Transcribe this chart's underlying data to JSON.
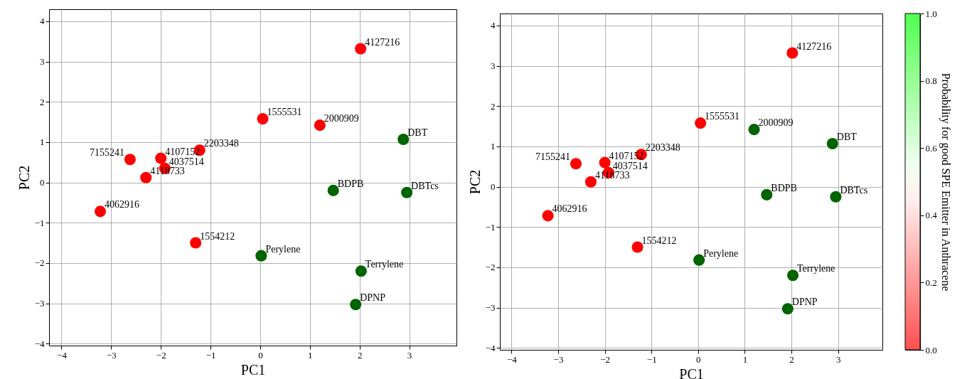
{
  "chart_data": [
    {
      "type": "scatter",
      "xlabel": "PC1",
      "ylabel": "PC2",
      "xlim": [
        -4.25,
        3.95
      ],
      "ylim": [
        -4.05,
        4.3
      ],
      "xticks": [
        -4,
        -3,
        -2,
        -1,
        0,
        1,
        2,
        3
      ],
      "yticks": [
        -4,
        -3,
        -2,
        -1,
        0,
        1,
        2,
        3,
        4
      ],
      "grid": true,
      "marker": "circle",
      "series": [
        {
          "color": "#ff0000",
          "x": [
            2.02,
            0.05,
            1.2,
            -1.22,
            -2.62,
            -2.0,
            -1.92,
            -2.3,
            -3.22,
            -1.3
          ],
          "values": [
            3.32,
            1.58,
            1.42,
            0.8,
            0.57,
            0.6,
            0.35,
            0.12,
            -0.72,
            -1.5
          ]
        },
        {
          "color": "#006400",
          "x": [
            2.88,
            1.47,
            2.95,
            0.02,
            2.03,
            1.92
          ],
          "values": [
            1.07,
            -0.2,
            -0.25,
            -1.82,
            -2.2,
            -3.03
          ]
        }
      ],
      "annotations": [
        {
          "text": "4127216",
          "x": 2.02,
          "y": 3.32
        },
        {
          "text": "1555531",
          "x": 0.05,
          "y": 1.58
        },
        {
          "text": "2000909",
          "x": 1.2,
          "y": 1.42
        },
        {
          "text": "2203348",
          "x": -1.22,
          "y": 0.8
        },
        {
          "text": "7155241",
          "x": -2.62,
          "y": 0.57
        },
        {
          "text": "4107152",
          "x": -2.0,
          "y": 0.6
        },
        {
          "text": "4037514",
          "x": -1.92,
          "y": 0.35
        },
        {
          "text": "4118733",
          "x": -2.3,
          "y": 0.12
        },
        {
          "text": "4062916",
          "x": -3.22,
          "y": -0.72
        },
        {
          "text": "1554212",
          "x": -1.3,
          "y": -1.5
        },
        {
          "text": "DBT",
          "x": 2.88,
          "y": 1.07
        },
        {
          "text": "BDPB",
          "x": 1.47,
          "y": -0.2
        },
        {
          "text": "DBTcs",
          "x": 2.95,
          "y": -0.25
        },
        {
          "text": "Perylene",
          "x": 0.02,
          "y": -1.82
        },
        {
          "text": "Terrylene",
          "x": 2.03,
          "y": -2.2
        },
        {
          "text": "DPNP",
          "x": 1.92,
          "y": -3.03
        }
      ]
    },
    {
      "type": "scatter",
      "xlabel": "PC1",
      "ylabel": "PC2",
      "xlim": [
        -4.25,
        3.95
      ],
      "ylim": [
        -4.05,
        4.3
      ],
      "xticks": [
        -4,
        -3,
        -2,
        -1,
        0,
        1,
        2,
        3
      ],
      "yticks": [
        -4,
        -3,
        -2,
        -1,
        0,
        1,
        2,
        3,
        4
      ],
      "grid": true,
      "marker": "circle",
      "clabel": "Probability for good SPE Emitter in Anthracene",
      "clim": [
        0,
        1
      ],
      "cticks": [
        {
          "value": 0,
          "label": "0.0"
        },
        0.2,
        0.4,
        0.6,
        0.8,
        {
          "value": 1,
          "label": "1.0"
        }
      ],
      "series": [
        {
          "color": "#ff0000",
          "x": [
            2.02,
            0.05,
            -1.22,
            -2.62,
            -2.0,
            -1.92,
            -2.3,
            -3.22,
            -1.3
          ],
          "values": [
            3.32,
            1.58,
            0.8,
            0.57,
            0.6,
            0.35,
            0.12,
            -0.72,
            -1.5
          ]
        },
        {
          "color": "#006400",
          "x": [
            1.2,
            2.88,
            1.47,
            2.95,
            0.02,
            2.03,
            1.92
          ],
          "values": [
            1.42,
            1.07,
            -0.2,
            -0.25,
            -1.82,
            -2.2,
            -3.03
          ]
        }
      ],
      "annotations": [
        {
          "text": "4127216",
          "x": 2.02,
          "y": 3.32
        },
        {
          "text": "1555531",
          "x": 0.05,
          "y": 1.58
        },
        {
          "text": "2000909",
          "x": 1.2,
          "y": 1.42
        },
        {
          "text": "2203348",
          "x": -1.22,
          "y": 0.8
        },
        {
          "text": "7155241",
          "x": -2.62,
          "y": 0.57
        },
        {
          "text": "4107152",
          "x": -2.0,
          "y": 0.6
        },
        {
          "text": "4037514",
          "x": -1.92,
          "y": 0.35
        },
        {
          "text": "4118733",
          "x": -2.3,
          "y": 0.12
        },
        {
          "text": "4062916",
          "x": -3.22,
          "y": -0.72
        },
        {
          "text": "1554212",
          "x": -1.3,
          "y": -1.5
        },
        {
          "text": "DBT",
          "x": 2.88,
          "y": 1.07
        },
        {
          "text": "BDPB",
          "x": 1.47,
          "y": -0.2
        },
        {
          "text": "DBTcs",
          "x": 2.95,
          "y": -0.25
        },
        {
          "text": "Perylene",
          "x": 0.02,
          "y": -1.82
        },
        {
          "text": "Terrylene",
          "x": 2.03,
          "y": -2.2
        },
        {
          "text": "DPNP",
          "x": 1.92,
          "y": -3.03
        }
      ]
    }
  ]
}
